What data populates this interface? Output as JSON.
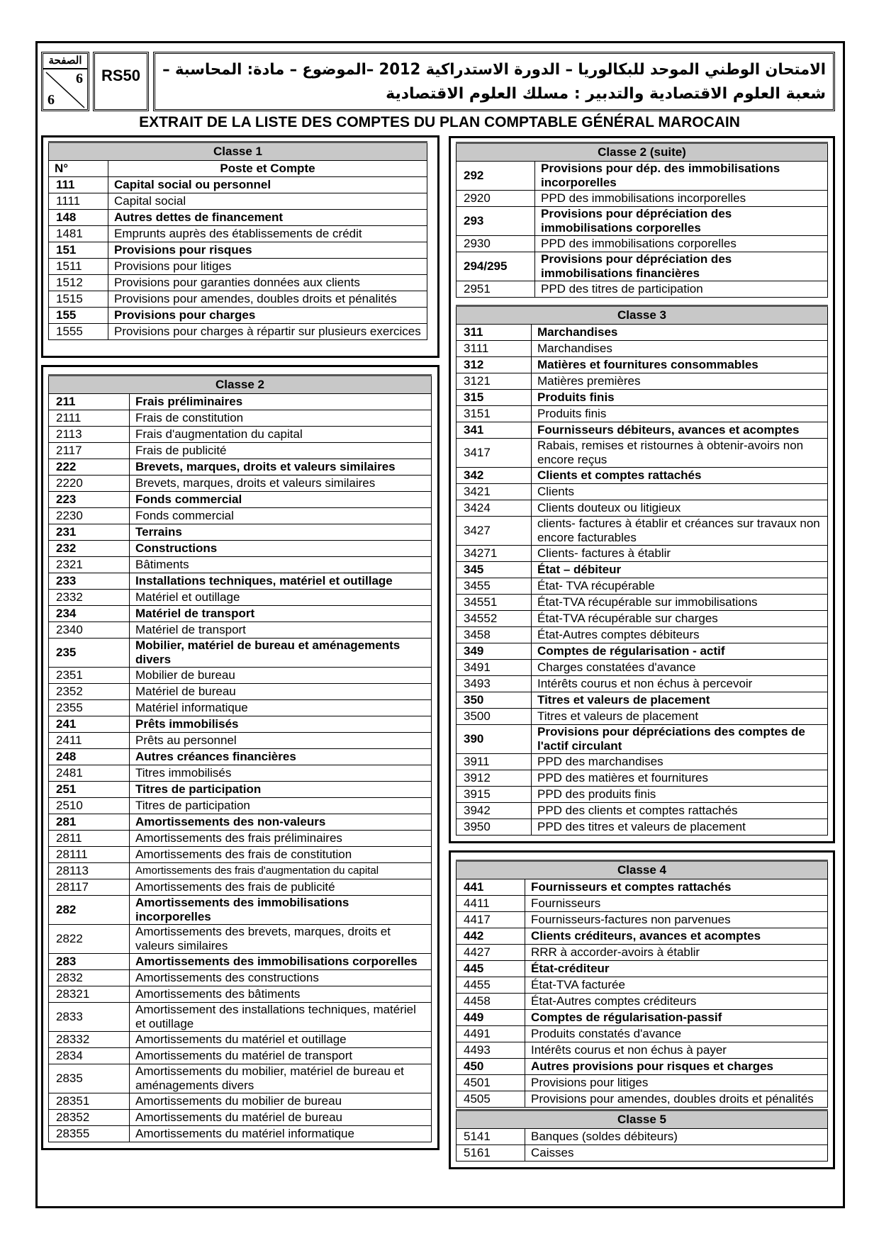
{
  "header": {
    "page_label": "الصفحة",
    "page_current": "6",
    "page_total": "6",
    "code": "RS50",
    "arabic_line1": "الامتحان الوطني الموحد للبكالوريا – الدورة الاستدراكية 2012 –الموضوع – مادة: المحاسبة –",
    "arabic_line2": "شعبة العلوم الاقتصادية والتدبير : مسلك العلوم الاقتصادية"
  },
  "title": "EXTRAIT DE LA LISTE DES COMPTES DU PLAN COMPTABLE GÉNÉRAL  MAROCAIN",
  "tables": {
    "classe1": {
      "title": "Classe 1",
      "col_no": "N°",
      "col_label": "Poste et Compte",
      "rows": [
        {
          "n": "111",
          "t": "Capital social ou personnel",
          "b": true
        },
        {
          "n": "1111",
          "t": "Capital social",
          "b": false
        },
        {
          "n": "148",
          "t": "Autres dettes de financement",
          "b": true
        },
        {
          "n": "1481",
          "t": "Emprunts auprès des établissements de crédit",
          "b": false
        },
        {
          "n": "151",
          "t": "Provisions pour risques",
          "b": true
        },
        {
          "n": "1511",
          "t": "Provisions pour litiges",
          "b": false
        },
        {
          "n": "1512",
          "t": "Provisions pour garanties données aux clients",
          "b": false
        },
        {
          "n": "1515",
          "t": "Provisions pour amendes, doubles droits et pénalités",
          "b": false
        },
        {
          "n": "155",
          "t": "Provisions pour charges",
          "b": true
        },
        {
          "n": "1555",
          "t": "Provisions pour charges à répartir sur plusieurs exercices",
          "b": false
        }
      ]
    },
    "classe2": {
      "title": "Classe 2",
      "rows": [
        {
          "n": "211",
          "t": "Frais préliminaires",
          "b": true
        },
        {
          "n": "2111",
          "t": "Frais de constitution",
          "b": false
        },
        {
          "n": "2113",
          "t": "Frais d'augmentation du capital",
          "b": false
        },
        {
          "n": "2117",
          "t": "Frais de publicité",
          "b": false
        },
        {
          "n": "222",
          "t": "Brevets, marques, droits et valeurs similaires",
          "b": true
        },
        {
          "n": "2220",
          "t": "Brevets, marques, droits et valeurs similaires",
          "b": false
        },
        {
          "n": "223",
          "t": "Fonds commercial",
          "b": true
        },
        {
          "n": "2230",
          "t": "Fonds commercial",
          "b": false
        },
        {
          "n": "231",
          "t": "Terrains",
          "b": true
        },
        {
          "n": "232",
          "t": "Constructions",
          "b": true
        },
        {
          "n": "2321",
          "t": "Bâtiments",
          "b": false
        },
        {
          "n": "233",
          "t": "Installations techniques, matériel et outillage",
          "b": true
        },
        {
          "n": "2332",
          "t": "Matériel et outillage",
          "b": false
        },
        {
          "n": "234",
          "t": "Matériel de transport",
          "b": true
        },
        {
          "n": "2340",
          "t": "Matériel de transport",
          "b": false
        },
        {
          "n": "235",
          "t": "Mobilier, matériel de bureau et aménagements divers",
          "b": true
        },
        {
          "n": "2351",
          "t": "Mobilier de bureau",
          "b": false
        },
        {
          "n": "2352",
          "t": "Matériel de bureau",
          "b": false
        },
        {
          "n": "2355",
          "t": "Matériel informatique",
          "b": false
        },
        {
          "n": "241",
          "t": "Prêts immobilisés",
          "b": true
        },
        {
          "n": "2411",
          "t": "Prêts au personnel",
          "b": false
        },
        {
          "n": "248",
          "t": "Autres créances financières",
          "b": true
        },
        {
          "n": "2481",
          "t": "Titres immobilisés",
          "b": false
        },
        {
          "n": "251",
          "t": "Titres de participation",
          "b": true
        },
        {
          "n": "2510",
          "t": "Titres de participation",
          "b": false
        },
        {
          "n": "281",
          "t": "Amortissements des non-valeurs",
          "b": true
        },
        {
          "n": "2811",
          "t": "Amortissements des frais préliminaires",
          "b": false
        },
        {
          "n": "28111",
          "t": "Amortissements  des frais de constitution",
          "b": false
        },
        {
          "n": "28113",
          "t": "Amortissements  des frais d'augmentation du capital",
          "b": false,
          "s": true
        },
        {
          "n": "28117",
          "t": "Amortissements  des frais de publicité",
          "b": false
        },
        {
          "n": "282",
          "t": "Amortissements des immobilisations incorporelles",
          "b": true
        },
        {
          "n": "2822",
          "t": "Amortissements  des brevets, marques, droits et valeurs similaires",
          "b": false
        },
        {
          "n": "283",
          "t": "Amortissements des immobilisations corporelles",
          "b": true
        },
        {
          "n": "2832",
          "t": "Amortissements des constructions",
          "b": false
        },
        {
          "n": "28321",
          "t": "Amortissements des bâtiments",
          "b": false
        },
        {
          "n": "2833",
          "t": "Amortissement des installations techniques, matériel et outillage",
          "b": false
        },
        {
          "n": "28332",
          "t": "Amortissements du matériel et outillage",
          "b": false
        },
        {
          "n": "2834",
          "t": "Amortissements du matériel de transport",
          "b": false
        },
        {
          "n": "2835",
          "t": "Amortissements du mobilier, matériel de bureau et aménagements divers",
          "b": false
        },
        {
          "n": "28351",
          "t": "Amortissements du mobilier de bureau",
          "b": false
        },
        {
          "n": "28352",
          "t": "Amortissements du matériel de bureau",
          "b": false
        },
        {
          "n": "28355",
          "t": "Amortissements du matériel informatique",
          "b": false
        }
      ]
    },
    "classe2_suite": {
      "title": "Classe 2 (suite)",
      "rows": [
        {
          "n": "292",
          "t": "Provisions pour dép. des immobilisations incorporelles",
          "b": true
        },
        {
          "n": "2920",
          "t": "PPD des immobilisations incorporelles",
          "b": false
        },
        {
          "n": "293",
          "t": "Provisions pour dépréciation des immobilisations corporelles",
          "b": true
        },
        {
          "n": "2930",
          "t": "PPD des immobilisations corporelles",
          "b": false
        },
        {
          "n": "294/295",
          "t": "Provisions pour dépréciation des immobilisations financières",
          "b": true
        },
        {
          "n": "2951",
          "t": "PPD des titres de participation",
          "b": false
        }
      ]
    },
    "classe3": {
      "title": "Classe 3",
      "rows": [
        {
          "n": "311",
          "t": "Marchandises",
          "b": true
        },
        {
          "n": "3111",
          "t": "Marchandises",
          "b": false
        },
        {
          "n": "312",
          "t": "Matières et fournitures consommables",
          "b": true
        },
        {
          "n": "3121",
          "t": "Matières premières",
          "b": false
        },
        {
          "n": "315",
          "t": "Produits finis",
          "b": true
        },
        {
          "n": "3151",
          "t": "Produits finis",
          "b": false
        },
        {
          "n": "341",
          "t": " Fournisseurs débiteurs, avances et acomptes",
          "b": true
        },
        {
          "n": "3417",
          "t": "Rabais, remises et ristournes  à obtenir-avoirs non encore reçus",
          "b": false
        },
        {
          "n": "342",
          "t": "Clients et comptes rattachés",
          "b": true
        },
        {
          "n": "3421",
          "t": "Clients",
          "b": false
        },
        {
          "n": "3424",
          "t": "Clients douteux ou litigieux",
          "b": false
        },
        {
          "n": "3427",
          "t": "clients- factures à établir et créances sur travaux non encore facturables",
          "b": false
        },
        {
          "n": "34271",
          "t": "Clients- factures à établir",
          "b": false
        },
        {
          "n": "345",
          "t": "État – débiteur",
          "b": true
        },
        {
          "n": "3455",
          "t": "État- TVA récupérable",
          "b": false
        },
        {
          "n": "34551",
          "t": "État-TVA récupérable sur immobilisations",
          "b": false
        },
        {
          "n": "34552",
          "t": "État-TVA récupérable sur charges",
          "b": false
        },
        {
          "n": "3458",
          "t": "État-Autres comptes débiteurs",
          "b": false
        },
        {
          "n": "349",
          "t": "Comptes de régularisation - actif",
          "b": true
        },
        {
          "n": "3491",
          "t": "Charges constatées d'avance",
          "b": false
        },
        {
          "n": "3493",
          "t": "Intérêts courus et non échus à percevoir",
          "b": false
        },
        {
          "n": "350",
          "t": "Titres et valeurs de placement",
          "b": true
        },
        {
          "n": "3500",
          "t": "Titres et valeurs de placement",
          "b": false
        },
        {
          "n": "390",
          "t": "Provisions pour dépréciations des comptes de l'actif circulant",
          "b": true
        },
        {
          "n": "3911",
          "t": "PPD des marchandises",
          "b": false
        },
        {
          "n": "3912",
          "t": "PPD des matières et fournitures",
          "b": false
        },
        {
          "n": "3915",
          "t": "PPD des produits finis",
          "b": false
        },
        {
          "n": "3942",
          "t": "PPD des clients et comptes  rattachés",
          "b": false
        },
        {
          "n": "3950",
          "t": "PPD des titres et valeurs de placement",
          "b": false
        }
      ]
    },
    "classe4": {
      "title": "Classe 4",
      "rows": [
        {
          "n": "441",
          "t": "Fournisseurs et comptes rattachés",
          "b": true
        },
        {
          "n": "4411",
          "t": "Fournisseurs",
          "b": false
        },
        {
          "n": "4417",
          "t": "Fournisseurs-factures non parvenues",
          "b": false
        },
        {
          "n": "442",
          "t": "Clients créditeurs, avances et acomptes",
          "b": true
        },
        {
          "n": "4427",
          "t": "RRR à accorder-avoirs à établir",
          "b": false
        },
        {
          "n": "445",
          "t": "État-créditeur",
          "b": true
        },
        {
          "n": "4455",
          "t": "État-TVA facturée",
          "b": false
        },
        {
          "n": "4458",
          "t": "État-Autres comptes créditeurs",
          "b": false
        },
        {
          "n": "449",
          "t": "Comptes de régularisation-passif",
          "b": true
        },
        {
          "n": "4491",
          "t": "Produits constatés d'avance",
          "b": false
        },
        {
          "n": "4493",
          "t": "Intérêts courus et non échus à payer",
          "b": false
        },
        {
          "n": "450",
          "t": "Autres provisions pour risques et charges",
          "b": true
        },
        {
          "n": "4501",
          "t": "Provisions pour litiges",
          "b": false
        },
        {
          "n": "4505",
          "t": "Provisions pour amendes, doubles droits et pénalités",
          "b": false
        }
      ]
    },
    "classe5": {
      "title": "Classe 5",
      "rows": [
        {
          "n": "5141",
          "t": "Banques (soldes débiteurs)",
          "b": false
        },
        {
          "n": "5161",
          "t": "Caisses",
          "b": false
        }
      ]
    }
  }
}
